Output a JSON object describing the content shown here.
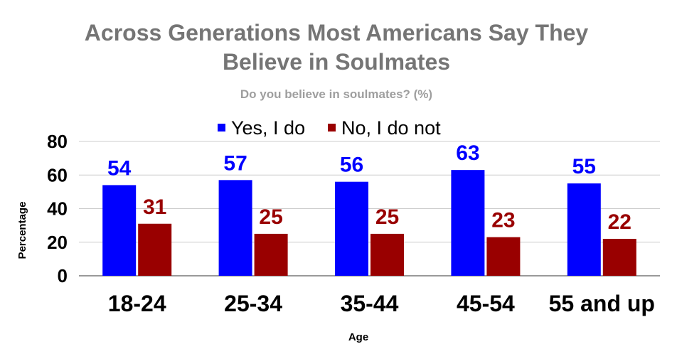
{
  "chart_data": {
    "type": "bar",
    "title_lines": [
      "Across Generations Most Americans Say They",
      "Believe in Soulmates"
    ],
    "subtitle": "Do you believe in soulmates? (%)",
    "xlabel": "Age",
    "ylabel": "Percentage",
    "categories": [
      "18-24",
      "25-34",
      "35-44",
      "45-54",
      "55 and up"
    ],
    "ylim": [
      0,
      80
    ],
    "yticks": [
      0,
      20,
      40,
      60,
      80
    ],
    "grid": true,
    "legend_position": "top",
    "series": [
      {
        "name": "Yes, I do",
        "color": "#0000ff",
        "values": [
          54,
          57,
          56,
          63,
          55
        ]
      },
      {
        "name": "No, I do not",
        "color": "#990000",
        "values": [
          31,
          25,
          25,
          23,
          22
        ]
      }
    ]
  }
}
